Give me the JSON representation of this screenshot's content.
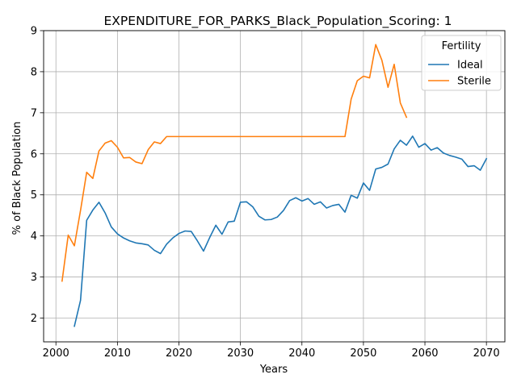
{
  "chart_data": {
    "type": "line",
    "title": "EXPENDITURE_FOR_PARKS_Black_Population_Scoring: 1",
    "xlabel": "Years",
    "ylabel": "% of Black Population",
    "xlim": [
      1998,
      2073
    ],
    "ylim": [
      1.42,
      9.0
    ],
    "xticks": [
      2000,
      2010,
      2020,
      2030,
      2040,
      2050,
      2060,
      2070
    ],
    "yticks": [
      2,
      3,
      4,
      5,
      6,
      7,
      8,
      9
    ],
    "grid": true,
    "legend": {
      "title": "Fertility",
      "placement": "top-right"
    },
    "series": [
      {
        "name": "Ideal",
        "color": "#1f77b4",
        "x": [
          2003,
          2004,
          2005,
          2006,
          2007,
          2008,
          2009,
          2010,
          2011,
          2012,
          2013,
          2014,
          2015,
          2016,
          2017,
          2018,
          2019,
          2020,
          2021,
          2022,
          2023,
          2024,
          2025,
          2026,
          2027,
          2028,
          2029,
          2030,
          2031,
          2032,
          2033,
          2034,
          2035,
          2036,
          2037,
          2038,
          2039,
          2040,
          2041,
          2042,
          2043,
          2044,
          2045,
          2046,
          2047,
          2048,
          2049,
          2050,
          2051,
          2052,
          2053,
          2054,
          2055,
          2056,
          2057,
          2058,
          2059,
          2060,
          2061,
          2062,
          2063,
          2064,
          2065,
          2066,
          2067,
          2068,
          2069,
          2070
        ],
        "y": [
          1.8,
          2.43,
          4.38,
          4.63,
          4.82,
          4.56,
          4.22,
          4.05,
          3.95,
          3.88,
          3.83,
          3.81,
          3.78,
          3.65,
          3.57,
          3.8,
          3.95,
          4.06,
          4.12,
          4.11,
          3.88,
          3.63,
          3.96,
          4.26,
          4.04,
          4.34,
          4.36,
          4.82,
          4.83,
          4.71,
          4.48,
          4.39,
          4.4,
          4.46,
          4.62,
          4.86,
          4.93,
          4.85,
          4.91,
          4.77,
          4.83,
          4.68,
          4.74,
          4.77,
          4.58,
          4.99,
          4.92,
          5.29,
          5.11,
          5.63,
          5.67,
          5.75,
          6.12,
          6.33,
          6.21,
          6.43,
          6.16,
          6.25,
          6.09,
          6.15,
          6.02,
          5.96,
          5.92,
          5.87,
          5.69,
          5.71,
          5.6,
          5.88
        ]
      },
      {
        "name": "Sterile",
        "color": "#ff7f0e",
        "x": [
          2001,
          2002,
          2003,
          2004,
          2005,
          2006,
          2007,
          2008,
          2009,
          2010,
          2011,
          2012,
          2013,
          2014,
          2015,
          2016,
          2017,
          2018,
          2019,
          2020,
          2021,
          2022,
          2023,
          2024,
          2025,
          2026,
          2027,
          2028,
          2029,
          2030,
          2031,
          2032,
          2033,
          2034,
          2035,
          2036,
          2037,
          2038,
          2039,
          2040,
          2041,
          2042,
          2043,
          2044,
          2045,
          2046,
          2047,
          2048,
          2049,
          2050,
          2051,
          2052,
          2053,
          2054,
          2055,
          2056,
          2057
        ],
        "y": [
          2.9,
          4.02,
          3.76,
          4.62,
          5.55,
          5.4,
          6.07,
          6.26,
          6.32,
          6.16,
          5.9,
          5.91,
          5.8,
          5.76,
          6.1,
          6.29,
          6.25,
          6.42,
          6.42,
          6.42,
          6.42,
          6.42,
          6.42,
          6.42,
          6.42,
          6.42,
          6.42,
          6.42,
          6.42,
          6.42,
          6.42,
          6.42,
          6.42,
          6.42,
          6.42,
          6.42,
          6.42,
          6.42,
          6.42,
          6.42,
          6.42,
          6.42,
          6.42,
          6.42,
          6.42,
          6.42,
          6.42,
          7.33,
          7.78,
          7.89,
          7.85,
          8.66,
          8.28,
          7.62,
          8.18,
          7.24,
          6.89
        ]
      }
    ]
  }
}
